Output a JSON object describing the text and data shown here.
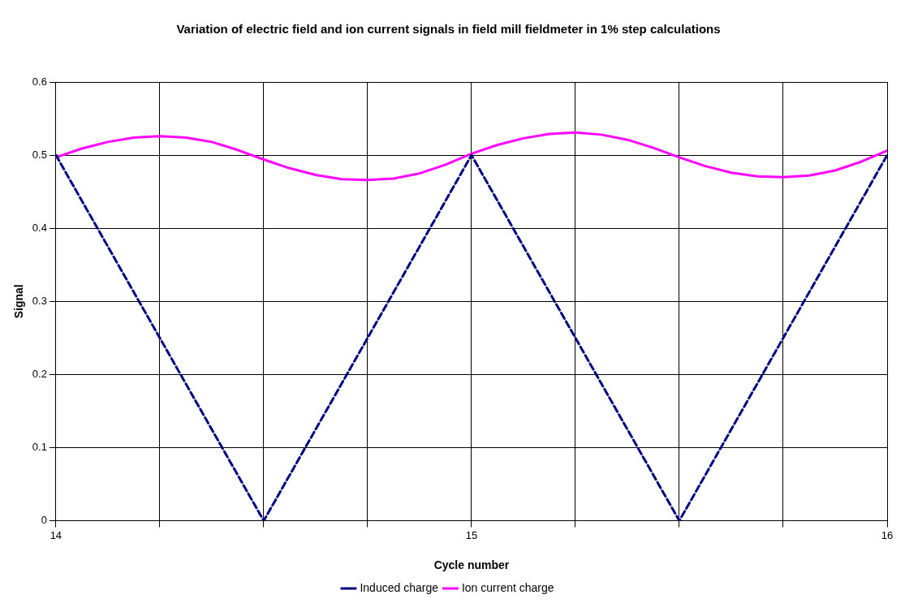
{
  "chart_data": {
    "type": "line",
    "title": "Variation of electric field and ion current signals in field mill fieldmeter in 1% step calculations",
    "xlabel": "Cycle number",
    "ylabel": "Signal",
    "xlim": [
      14,
      16
    ],
    "xticks": [
      14,
      {
        "value": 14.25,
        "label": null
      },
      {
        "value": 14.5,
        "label": null
      },
      {
        "value": 14.75,
        "label": null
      },
      15,
      {
        "value": 15.25,
        "label": null
      },
      {
        "value": 15.5,
        "label": null
      },
      {
        "value": 15.75,
        "label": null
      },
      16
    ],
    "ylim": [
      0,
      0.6
    ],
    "yticks": [
      0,
      0.1,
      0.2,
      0.3,
      0.4,
      0.5,
      0.6
    ],
    "grid": true,
    "legend": "bottom",
    "marker": "none",
    "series": [
      {
        "name": "Induced charge",
        "color": "#000080",
        "line_style": "dashed",
        "x": [
          14,
          14.5,
          15,
          15.5,
          16
        ],
        "values": [
          0.5,
          0,
          0.5,
          0,
          0.5
        ]
      },
      {
        "name": "Ion current charge",
        "color": "#ff00ff",
        "line_style": "solid",
        "x": [
          14,
          14.0625,
          14.125,
          14.1875,
          14.25,
          14.3125,
          14.375,
          14.4375,
          14.5,
          14.5625,
          14.625,
          14.6875,
          14.75,
          14.8125,
          14.875,
          14.9375,
          15,
          15.0625,
          15.125,
          15.1875,
          15.25,
          15.3125,
          15.375,
          15.4375,
          15.5,
          15.5625,
          15.625,
          15.6875,
          15.75,
          15.8125,
          15.875,
          15.9375,
          16
        ],
        "values": [
          0.497,
          0.509,
          0.518,
          0.524,
          0.526,
          0.524,
          0.518,
          0.507,
          0.494,
          0.482,
          0.473,
          0.467,
          0.466,
          0.468,
          0.475,
          0.487,
          0.502,
          0.514,
          0.523,
          0.529,
          0.531,
          0.528,
          0.521,
          0.51,
          0.497,
          0.485,
          0.476,
          0.471,
          0.47,
          0.472,
          0.479,
          0.491,
          0.506
        ]
      }
    ]
  }
}
